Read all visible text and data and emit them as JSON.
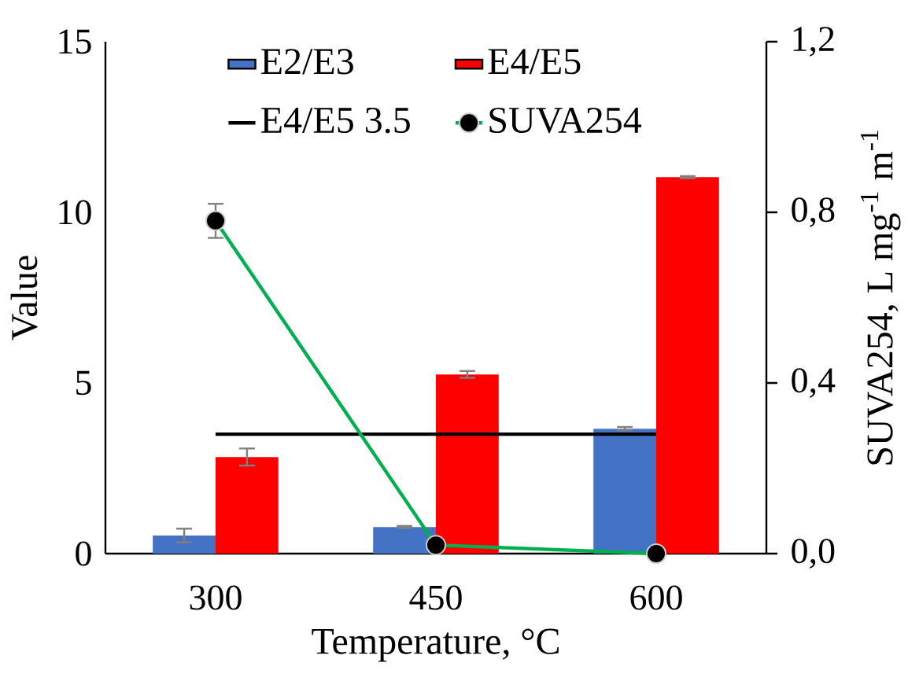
{
  "chart_data": {
    "type": "bar",
    "xlabel": "Temperature, °C",
    "ylabel": "Value",
    "y2label": "SUVA254, L mg$^{-1}$ m$^{-1}$",
    "categories": [
      "300",
      "450",
      "600"
    ],
    "series": [
      {
        "name": "E2/E3",
        "color": "#4472c4",
        "values": [
          0.53,
          0.78,
          3.66
        ],
        "errors": [
          0.2,
          0.03,
          0.05
        ]
      },
      {
        "name": "E4/E5",
        "color": "#ff0000",
        "values": [
          2.83,
          5.25,
          11.03
        ],
        "errors": [
          0.25,
          0.1,
          0.03
        ]
      },
      {
        "name": "E4/E5 3.5",
        "type": "line",
        "color": "#000000",
        "values": [
          3.5,
          3.5,
          3.5
        ],
        "marker": "none"
      },
      {
        "name": "SUVA254",
        "type": "line",
        "axis": "y2",
        "color": "#00b050",
        "values": [
          0.78,
          0.02,
          0.0
        ],
        "errors": [
          0.04,
          null,
          null
        ],
        "marker": "circle"
      }
    ],
    "ylim": [
      0,
      15
    ],
    "yticks": [
      0,
      5,
      10,
      15
    ],
    "y2lim": [
      0,
      1.2
    ],
    "y2ticks": [
      {
        "value": 0,
        "label": "0,0"
      },
      {
        "value": 0.4,
        "label": "0,4"
      },
      {
        "value": 0.8,
        "label": "0,8"
      },
      {
        "value": 1.2,
        "label": "1,2"
      }
    ],
    "grid": false,
    "legend": "top"
  }
}
